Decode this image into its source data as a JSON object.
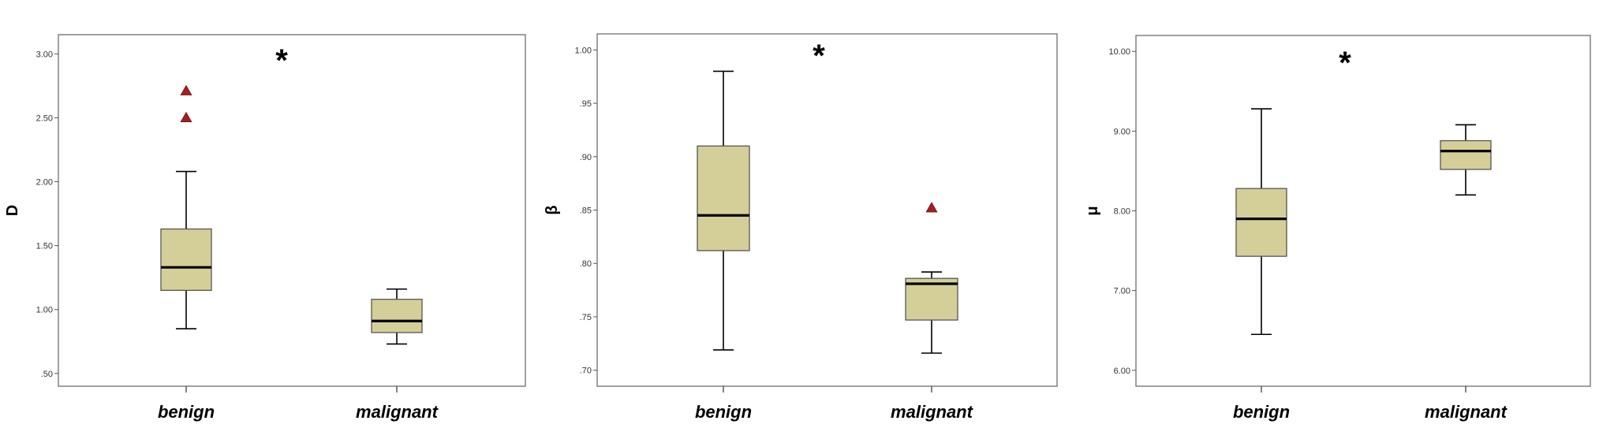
{
  "chart_data": [
    {
      "type": "box",
      "ylabel": "D",
      "ylim": [
        0.4,
        3.15
      ],
      "yticks": [
        0.5,
        1.0,
        1.5,
        2.0,
        2.5,
        3.0
      ],
      "ytick_labels": [
        ".50",
        "1.00",
        "1.50",
        "2.00",
        "2.50",
        "3.00"
      ],
      "categories": [
        "benign",
        "malignant"
      ],
      "boxes": [
        {
          "category": "benign",
          "min": 0.85,
          "q1": 1.15,
          "median": 1.33,
          "q3": 1.63,
          "max": 2.08,
          "outliers": [
            2.5,
            2.71
          ]
        },
        {
          "category": "malignant",
          "min": 0.73,
          "q1": 0.82,
          "median": 0.91,
          "q3": 1.08,
          "max": 1.16,
          "outliers": []
        }
      ],
      "annotation": "*"
    },
    {
      "type": "box",
      "ylabel": "β",
      "ylim": [
        0.685,
        1.015
      ],
      "yticks": [
        0.7,
        0.75,
        0.8,
        0.85,
        0.9,
        0.95,
        1.0
      ],
      "ytick_labels": [
        ".70",
        ".75",
        ".80",
        ".85",
        ".90",
        ".95",
        "1.00"
      ],
      "categories": [
        "benign",
        "malignant"
      ],
      "boxes": [
        {
          "category": "benign",
          "min": 0.719,
          "q1": 0.812,
          "median": 0.845,
          "q3": 0.91,
          "max": 0.98,
          "outliers": []
        },
        {
          "category": "malignant",
          "min": 0.716,
          "q1": 0.747,
          "median": 0.781,
          "q3": 0.786,
          "max": 0.792,
          "outliers": [
            0.852
          ]
        }
      ],
      "annotation": "*"
    },
    {
      "type": "box",
      "ylabel": "μ",
      "ylim": [
        5.8,
        10.2
      ],
      "yticks": [
        6.0,
        7.0,
        8.0,
        9.0,
        10.0
      ],
      "ytick_labels": [
        "6.00",
        "7.00",
        "8.00",
        "9.00",
        "10.00"
      ],
      "categories": [
        "benign",
        "malignant"
      ],
      "boxes": [
        {
          "category": "benign",
          "min": 6.45,
          "q1": 7.43,
          "median": 7.9,
          "q3": 8.28,
          "max": 9.28,
          "outliers": []
        },
        {
          "category": "malignant",
          "min": 8.2,
          "q1": 8.52,
          "median": 8.75,
          "q3": 8.88,
          "max": 9.08,
          "outliers": []
        }
      ],
      "annotation": "*"
    }
  ]
}
